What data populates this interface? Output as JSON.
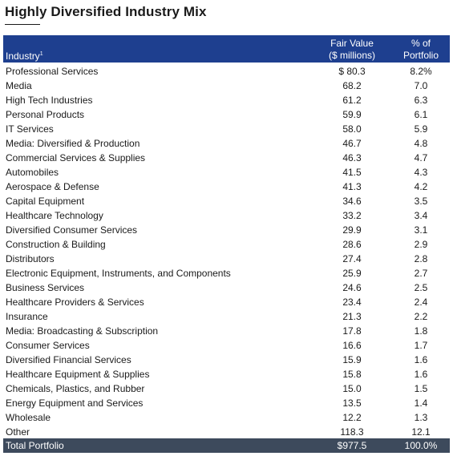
{
  "title": "Highly Diversified Industry Mix",
  "header": {
    "industry": "Industry",
    "industry_footnote": "1",
    "fair_value_line1": "Fair Value",
    "fair_value_line2": "($ millions)",
    "pct_line1": "% of",
    "pct_line2": "Portfolio"
  },
  "rows": [
    {
      "industry": "Professional Services",
      "fair_value": "$ 80.3",
      "pct": "8.2%"
    },
    {
      "industry": "Media",
      "fair_value": "68.2",
      "pct": "7.0"
    },
    {
      "industry": "High Tech Industries",
      "fair_value": "61.2",
      "pct": "6.3"
    },
    {
      "industry": "Personal Products",
      "fair_value": "59.9",
      "pct": "6.1"
    },
    {
      "industry": "IT Services",
      "fair_value": "58.0",
      "pct": "5.9"
    },
    {
      "industry": "Media: Diversified & Production",
      "fair_value": "46.7",
      "pct": "4.8"
    },
    {
      "industry": "Commercial Services & Supplies",
      "fair_value": "46.3",
      "pct": "4.7"
    },
    {
      "industry": "Automobiles",
      "fair_value": "41.5",
      "pct": "4.3"
    },
    {
      "industry": "Aerospace & Defense",
      "fair_value": "41.3",
      "pct": "4.2"
    },
    {
      "industry": "Capital Equipment",
      "fair_value": "34.6",
      "pct": "3.5"
    },
    {
      "industry": "Healthcare Technology",
      "fair_value": "33.2",
      "pct": "3.4"
    },
    {
      "industry": "Diversified Consumer Services",
      "fair_value": "29.9",
      "pct": "3.1"
    },
    {
      "industry": "Construction & Building",
      "fair_value": "28.6",
      "pct": "2.9"
    },
    {
      "industry": "Distributors",
      "fair_value": "27.4",
      "pct": "2.8"
    },
    {
      "industry": "Electronic Equipment, Instruments, and Components",
      "fair_value": "25.9",
      "pct": "2.7"
    },
    {
      "industry": "Business Services",
      "fair_value": "24.6",
      "pct": "2.5"
    },
    {
      "industry": "Healthcare Providers & Services",
      "fair_value": "23.4",
      "pct": "2.4"
    },
    {
      "industry": "Insurance",
      "fair_value": "21.3",
      "pct": "2.2"
    },
    {
      "industry": "Media: Broadcasting & Subscription",
      "fair_value": "17.8",
      "pct": "1.8"
    },
    {
      "industry": "Consumer Services",
      "fair_value": "16.6",
      "pct": "1.7"
    },
    {
      "industry": "Diversified Financial Services",
      "fair_value": "15.9",
      "pct": "1.6"
    },
    {
      "industry": "Healthcare Equipment & Supplies",
      "fair_value": "15.8",
      "pct": "1.6"
    },
    {
      "industry": "Chemicals, Plastics, and Rubber",
      "fair_value": "15.0",
      "pct": "1.5"
    },
    {
      "industry": "Energy Equipment and Services",
      "fair_value": "13.5",
      "pct": "1.4"
    },
    {
      "industry": "Wholesale",
      "fair_value": "12.2",
      "pct": "1.3"
    },
    {
      "industry": "Other",
      "fair_value": "118.3",
      "pct": "12.1"
    }
  ],
  "total": {
    "label": "Total Portfolio",
    "fair_value": "$977.5",
    "pct": "100.0%"
  },
  "colors": {
    "header_bg": "#1e3f8f",
    "total_bg": "#3d4a5c"
  }
}
